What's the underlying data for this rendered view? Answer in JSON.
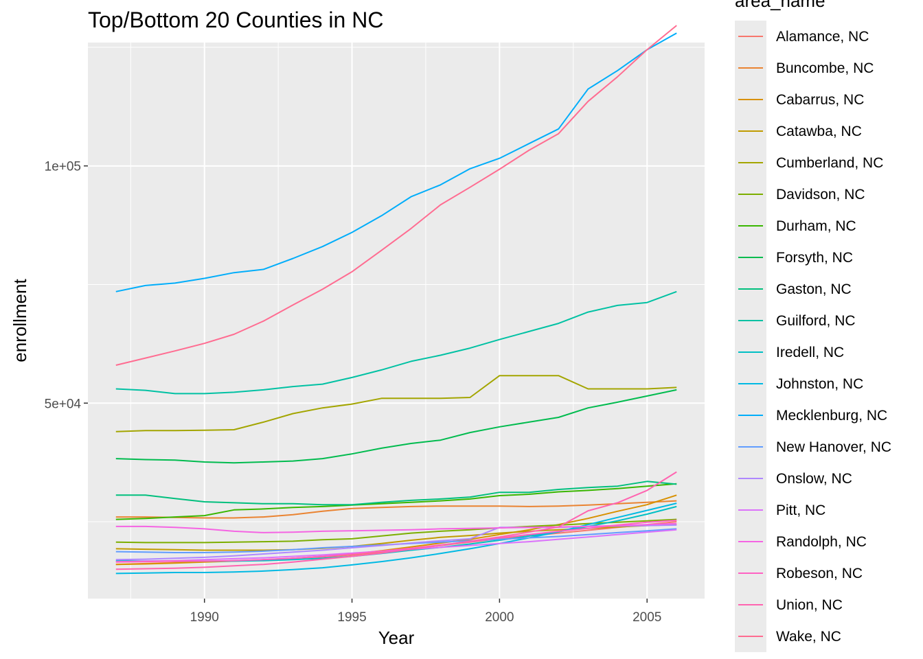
{
  "chart_data": {
    "type": "line",
    "title": "Top/Bottom 20 Counties in NC",
    "xlabel": "Year",
    "ylabel": "enrollment",
    "xlim": [
      1986.05,
      2006.95
    ],
    "ylim": [
      8800,
      126000
    ],
    "x_ticks": [
      {
        "value": 1990,
        "label": "1990"
      },
      {
        "value": 1995,
        "label": "1995"
      },
      {
        "value": 2000,
        "label": "2000"
      },
      {
        "value": 2005,
        "label": "2005"
      }
    ],
    "y_ticks": [
      {
        "value": 50000,
        "label": "5e+04"
      },
      {
        "value": 100000,
        "label": "1e+05"
      }
    ],
    "grid": true,
    "legend": {
      "title": "area_name",
      "placement": "right"
    },
    "x": [
      1987,
      1988,
      1989,
      1990,
      1991,
      1992,
      1993,
      1994,
      1995,
      1996,
      1997,
      1998,
      1999,
      2000,
      2001,
      2002,
      2003,
      2004,
      2005,
      2006
    ],
    "series": [
      {
        "name": "Alamance, NC",
        "color": "#F8766D",
        "values": [
          16000,
          16200,
          16400,
          16600,
          16800,
          17000,
          17300,
          17600,
          18000,
          18600,
          19300,
          20000,
          20700,
          21400,
          22000,
          22600,
          23200,
          23800,
          24400,
          25000
        ]
      },
      {
        "name": "Buncombe, NC",
        "color": "#EA8331",
        "values": [
          26000,
          26000,
          25900,
          25800,
          25800,
          26000,
          26500,
          27200,
          27800,
          28000,
          28200,
          28300,
          28300,
          28300,
          28200,
          28300,
          28500,
          28800,
          29100,
          29400
        ]
      },
      {
        "name": "Cabarrus, NC",
        "color": "#D89000",
        "values": [
          16000,
          16100,
          16300,
          16500,
          16700,
          16900,
          17300,
          17700,
          18200,
          18900,
          19700,
          20500,
          21300,
          22300,
          23300,
          24400,
          25700,
          27200,
          28600,
          30600
        ]
      },
      {
        "name": "Catawba, NC",
        "color": "#C09B00",
        "values": [
          19300,
          19200,
          19100,
          19000,
          19000,
          19000,
          19100,
          19400,
          19800,
          20400,
          21100,
          21700,
          22100,
          22600,
          23000,
          23300,
          23600,
          23900,
          24200,
          24400
        ]
      },
      {
        "name": "Cumberland, NC",
        "color": "#A3A500",
        "values": [
          44000,
          44200,
          44200,
          44300,
          44400,
          46000,
          47800,
          49000,
          49800,
          51000,
          51000,
          51000,
          51200,
          55800,
          55800,
          55800,
          53000,
          53000,
          53000,
          53300
        ]
      },
      {
        "name": "Davidson, NC",
        "color": "#7CAE00",
        "values": [
          20700,
          20600,
          20600,
          20600,
          20700,
          20800,
          20900,
          21200,
          21400,
          22000,
          22600,
          23000,
          23300,
          23700,
          24000,
          24300,
          24600,
          24900,
          25200,
          25500
        ]
      },
      {
        "name": "Durham, NC",
        "color": "#39B600",
        "values": [
          25500,
          25700,
          26000,
          26300,
          27500,
          27700,
          28000,
          28200,
          28500,
          28800,
          29100,
          29400,
          29800,
          30500,
          30800,
          31300,
          31600,
          32000,
          32500,
          33000
        ]
      },
      {
        "name": "Forsyth, NC",
        "color": "#00BB4E",
        "values": [
          38300,
          38100,
          38000,
          37600,
          37400,
          37600,
          37800,
          38300,
          39300,
          40500,
          41500,
          42200,
          43800,
          45000,
          46000,
          47000,
          49000,
          50200,
          51500,
          52800
        ]
      },
      {
        "name": "Gaston, NC",
        "color": "#00BF7D",
        "values": [
          30600,
          30600,
          29900,
          29200,
          29000,
          28800,
          28800,
          28600,
          28600,
          29100,
          29500,
          29800,
          30200,
          31200,
          31200,
          31800,
          32200,
          32500,
          33500,
          32900
        ]
      },
      {
        "name": "Guilford, NC",
        "color": "#00C1A3",
        "values": [
          53000,
          52700,
          52000,
          52000,
          52300,
          52800,
          53500,
          54000,
          55400,
          57000,
          58800,
          60100,
          61600,
          63400,
          65100,
          66800,
          69200,
          70600,
          71200,
          73500
        ]
      },
      {
        "name": "Iredell, NC",
        "color": "#00BFC4",
        "values": [
          16800,
          16700,
          16700,
          16700,
          16700,
          16800,
          17000,
          17300,
          17700,
          18300,
          19000,
          19600,
          20300,
          21100,
          22000,
          22900,
          24000,
          25200,
          26600,
          28200
        ]
      },
      {
        "name": "Johnston, NC",
        "color": "#00B9E3",
        "values": [
          14100,
          14200,
          14300,
          14300,
          14400,
          14600,
          14900,
          15300,
          15900,
          16600,
          17400,
          18300,
          19300,
          20400,
          21600,
          22900,
          24400,
          25900,
          27400,
          28900
        ]
      },
      {
        "name": "Mecklenburg, NC",
        "color": "#00ADFA",
        "values": [
          73500,
          74800,
          75300,
          76300,
          77500,
          78200,
          80500,
          83000,
          86000,
          89500,
          93500,
          96000,
          99400,
          101600,
          104700,
          107800,
          116200,
          120100,
          124500,
          128000
        ]
      },
      {
        "name": "New Hanover, NC",
        "color": "#619CFF",
        "values": [
          18700,
          18600,
          18500,
          18500,
          18600,
          18800,
          19100,
          19500,
          19800,
          20100,
          20400,
          20700,
          21000,
          21300,
          21600,
          21900,
          22300,
          22700,
          23100,
          23500
        ]
      },
      {
        "name": "Onslow, NC",
        "color": "#AE87FF",
        "values": [
          17000,
          17100,
          17300,
          17500,
          17800,
          18200,
          18600,
          19000,
          19500,
          20000,
          20500,
          21000,
          21400,
          23800,
          23800,
          23800,
          24000,
          24100,
          24200,
          24300
        ]
      },
      {
        "name": "Pitt, NC",
        "color": "#DB72FB",
        "values": [
          16600,
          16700,
          16800,
          17000,
          17200,
          17400,
          17700,
          18000,
          18400,
          18800,
          19200,
          19600,
          20000,
          20400,
          20800,
          21300,
          21800,
          22300,
          22800,
          23300
        ]
      },
      {
        "name": "Randolph, NC",
        "color": "#F564E3",
        "values": [
          24000,
          24000,
          23800,
          23500,
          23000,
          22700,
          22800,
          23000,
          23100,
          23200,
          23300,
          23500,
          23600,
          23700,
          23800,
          23900,
          24000,
          24200,
          24400,
          24600
        ]
      },
      {
        "name": "Robeson, NC",
        "color": "#FF61C3",
        "values": [
          16500,
          16600,
          16700,
          16700,
          16800,
          17000,
          17300,
          17700,
          18200,
          18800,
          19400,
          20100,
          20800,
          21600,
          22300,
          23000,
          23600,
          24300,
          24900,
          25300
        ]
      },
      {
        "name": "Union, NC",
        "color": "#FF64B0",
        "values": [
          15000,
          15100,
          15200,
          15400,
          15700,
          16000,
          16500,
          17100,
          17700,
          18400,
          19200,
          20000,
          20900,
          21800,
          22800,
          23900,
          27300,
          29000,
          31600,
          35500
        ]
      },
      {
        "name": "Wake, NC",
        "color": "#FF6C91",
        "values": [
          58000,
          59500,
          61000,
          62600,
          64500,
          67300,
          70700,
          74000,
          77700,
          82200,
          86800,
          91800,
          95500,
          99300,
          103300,
          106800,
          113600,
          118800,
          124500,
          129600
        ]
      }
    ]
  }
}
